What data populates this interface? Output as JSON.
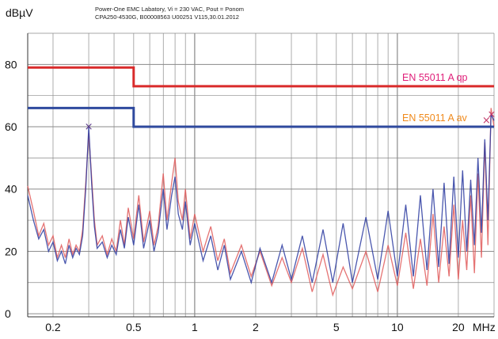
{
  "header": {
    "line1": "Power-One EMC Labatory, Vi = 230 VAC, Pout = Ponom",
    "line2": "CPA250-4530G, B00008563 U00251 V115,30.01.2012"
  },
  "chart_data": {
    "type": "line",
    "title": "",
    "xlabel": "MHz",
    "ylabel": "dBµV",
    "x_scale": "log",
    "xlim": [
      0.15,
      30
    ],
    "ylim": [
      -1,
      90
    ],
    "x_ticks": [
      {
        "value": 0.2,
        "label": "0.2"
      },
      {
        "value": 0.5,
        "label": "0.5"
      },
      {
        "value": 1,
        "label": "1"
      },
      {
        "value": 2,
        "label": "2"
      },
      {
        "value": 5,
        "label": "5"
      },
      {
        "value": 10,
        "label": "10"
      },
      {
        "value": 20,
        "label": "20"
      }
    ],
    "x_unit_label": "MHz",
    "y_ticks": [
      {
        "value": 0,
        "label": "0"
      },
      {
        "value": 20,
        "label": "20"
      },
      {
        "value": 40,
        "label": "40"
      },
      {
        "value": 60,
        "label": "60"
      },
      {
        "value": 80,
        "label": "80"
      }
    ],
    "grid": true,
    "limits": [
      {
        "name": "EN 55011 A qp",
        "color": "#d92b2b",
        "label_color": "#e0207a",
        "points": [
          [
            0.15,
            79
          ],
          [
            0.5,
            79
          ],
          [
            0.5,
            73
          ],
          [
            30,
            73
          ]
        ]
      },
      {
        "name": "EN 55011 A av",
        "color": "#2f4a9e",
        "label_color": "#f08a1c",
        "points": [
          [
            0.15,
            66
          ],
          [
            0.5,
            66
          ],
          [
            0.5,
            60
          ],
          [
            30,
            60
          ]
        ]
      }
    ],
    "series": [
      {
        "color": "#e05a5a",
        "points": [
          [
            0.15,
            41
          ],
          [
            0.16,
            33
          ],
          [
            0.17,
            25
          ],
          [
            0.18,
            29
          ],
          [
            0.19,
            22
          ],
          [
            0.2,
            25
          ],
          [
            0.21,
            18
          ],
          [
            0.22,
            22
          ],
          [
            0.23,
            18
          ],
          [
            0.24,
            24
          ],
          [
            0.25,
            19
          ],
          [
            0.26,
            22
          ],
          [
            0.27,
            20
          ],
          [
            0.28,
            27
          ],
          [
            0.29,
            42
          ],
          [
            0.3,
            58
          ],
          [
            0.31,
            44
          ],
          [
            0.32,
            30
          ],
          [
            0.33,
            22
          ],
          [
            0.35,
            25
          ],
          [
            0.37,
            19
          ],
          [
            0.39,
            24
          ],
          [
            0.41,
            20
          ],
          [
            0.43,
            30
          ],
          [
            0.45,
            22
          ],
          [
            0.47,
            34
          ],
          [
            0.5,
            24
          ],
          [
            0.53,
            38
          ],
          [
            0.56,
            23
          ],
          [
            0.6,
            33
          ],
          [
            0.63,
            22
          ],
          [
            0.66,
            28
          ],
          [
            0.7,
            45
          ],
          [
            0.73,
            30
          ],
          [
            0.77,
            42
          ],
          [
            0.8,
            50
          ],
          [
            0.83,
            36
          ],
          [
            0.87,
            30
          ],
          [
            0.9,
            40
          ],
          [
            0.95,
            24
          ],
          [
            1.0,
            32
          ],
          [
            1.1,
            20
          ],
          [
            1.2,
            28
          ],
          [
            1.3,
            17
          ],
          [
            1.4,
            24
          ],
          [
            1.5,
            13
          ],
          [
            1.7,
            22
          ],
          [
            1.9,
            12
          ],
          [
            2.1,
            20
          ],
          [
            2.4,
            9
          ],
          [
            2.7,
            18
          ],
          [
            3.0,
            10
          ],
          [
            3.4,
            21
          ],
          [
            3.8,
            7
          ],
          [
            4.3,
            19
          ],
          [
            4.8,
            6
          ],
          [
            5.4,
            15
          ],
          [
            6,
            8
          ],
          [
            7,
            20
          ],
          [
            8,
            7
          ],
          [
            9,
            22
          ],
          [
            10,
            9
          ],
          [
            11,
            26
          ],
          [
            12,
            8
          ],
          [
            13,
            24
          ],
          [
            14,
            9
          ],
          [
            15,
            32
          ],
          [
            16,
            10
          ],
          [
            17,
            28
          ],
          [
            18,
            12
          ],
          [
            19,
            35
          ],
          [
            20,
            11
          ],
          [
            21,
            30
          ],
          [
            22,
            14
          ],
          [
            23,
            38
          ],
          [
            24,
            13
          ],
          [
            25,
            45
          ],
          [
            26,
            18
          ],
          [
            27,
            55
          ],
          [
            28,
            22
          ],
          [
            29,
            66
          ],
          [
            30,
            60
          ]
        ]
      },
      {
        "color": "#2a3aa0",
        "points": [
          [
            0.15,
            38
          ],
          [
            0.16,
            30
          ],
          [
            0.17,
            24
          ],
          [
            0.18,
            27
          ],
          [
            0.19,
            20
          ],
          [
            0.2,
            23
          ],
          [
            0.21,
            17
          ],
          [
            0.22,
            20
          ],
          [
            0.23,
            16
          ],
          [
            0.24,
            22
          ],
          [
            0.25,
            18
          ],
          [
            0.26,
            21
          ],
          [
            0.27,
            19
          ],
          [
            0.28,
            25
          ],
          [
            0.29,
            40
          ],
          [
            0.3,
            60
          ],
          [
            0.31,
            42
          ],
          [
            0.32,
            28
          ],
          [
            0.33,
            21
          ],
          [
            0.35,
            23
          ],
          [
            0.37,
            18
          ],
          [
            0.39,
            22
          ],
          [
            0.41,
            19
          ],
          [
            0.43,
            27
          ],
          [
            0.45,
            21
          ],
          [
            0.47,
            31
          ],
          [
            0.5,
            22
          ],
          [
            0.53,
            35
          ],
          [
            0.56,
            21
          ],
          [
            0.6,
            30
          ],
          [
            0.63,
            20
          ],
          [
            0.66,
            26
          ],
          [
            0.7,
            40
          ],
          [
            0.73,
            27
          ],
          [
            0.77,
            38
          ],
          [
            0.8,
            44
          ],
          [
            0.83,
            32
          ],
          [
            0.87,
            27
          ],
          [
            0.9,
            36
          ],
          [
            0.95,
            22
          ],
          [
            1.0,
            29
          ],
          [
            1.1,
            17
          ],
          [
            1.2,
            25
          ],
          [
            1.3,
            14
          ],
          [
            1.4,
            22
          ],
          [
            1.5,
            11
          ],
          [
            1.7,
            20
          ],
          [
            1.9,
            10
          ],
          [
            2.1,
            21
          ],
          [
            2.4,
            10
          ],
          [
            2.7,
            22
          ],
          [
            3.0,
            11
          ],
          [
            3.4,
            25
          ],
          [
            3.8,
            10
          ],
          [
            4.3,
            27
          ],
          [
            4.8,
            10
          ],
          [
            5.4,
            29
          ],
          [
            6,
            10
          ],
          [
            7,
            31
          ],
          [
            8,
            11
          ],
          [
            9,
            33
          ],
          [
            10,
            12
          ],
          [
            11,
            35
          ],
          [
            12,
            12
          ],
          [
            13,
            38
          ],
          [
            14,
            14
          ],
          [
            15,
            40
          ],
          [
            16,
            15
          ],
          [
            17,
            42
          ],
          [
            18,
            16
          ],
          [
            19,
            44
          ],
          [
            20,
            18
          ],
          [
            21,
            46
          ],
          [
            22,
            20
          ],
          [
            23,
            43
          ],
          [
            24,
            22
          ],
          [
            25,
            50
          ],
          [
            26,
            26
          ],
          [
            27,
            56
          ],
          [
            28,
            30
          ],
          [
            29,
            64
          ],
          [
            30,
            62
          ]
        ]
      }
    ],
    "markers": [
      {
        "x": 0.3,
        "y": 60,
        "symbol": "×",
        "color": "#5a3a8a"
      },
      {
        "x": 27.5,
        "y": 62,
        "symbol": "×",
        "color": "#c23a6a"
      },
      {
        "x": 29.2,
        "y": 64,
        "symbol": "×",
        "color": "#c23a6a"
      }
    ],
    "legend": "right, on lines"
  }
}
